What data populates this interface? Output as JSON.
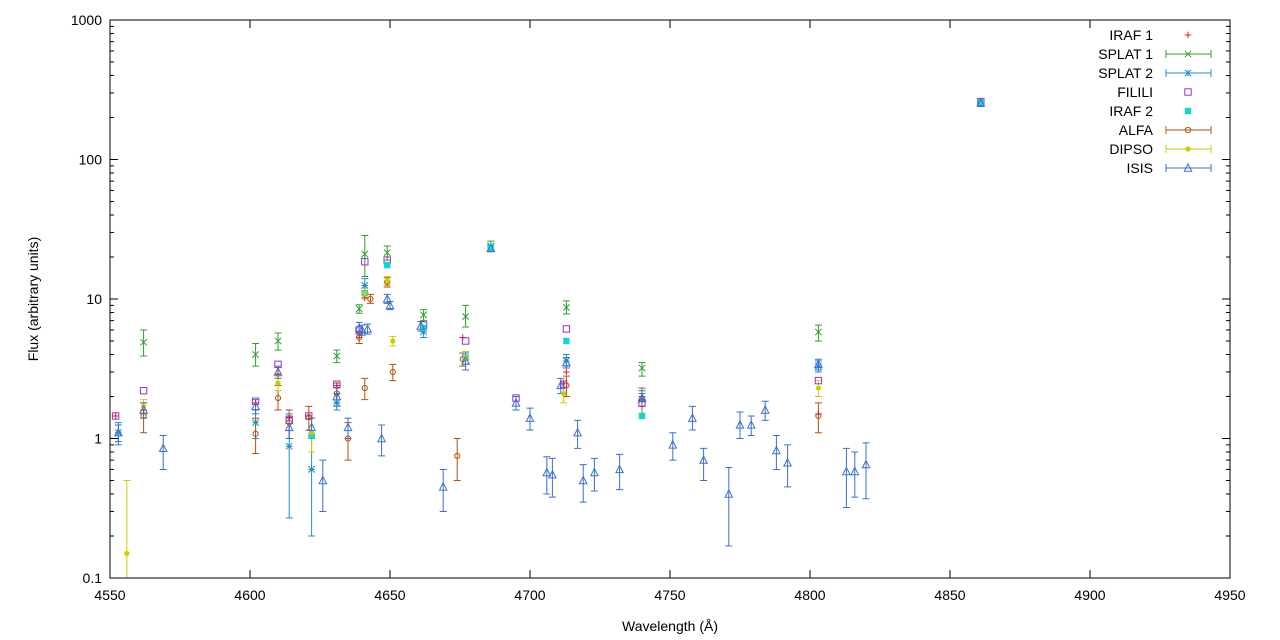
{
  "chart_data": {
    "type": "scatter",
    "xlabel": "Wavelength (Å)",
    "ylabel": "Flux (arbitrary units)",
    "xlim": [
      4550,
      4950
    ],
    "ylim": [
      0.1,
      1000
    ],
    "yscale": "log",
    "xticks": [
      "4550",
      "4600",
      "4650",
      "4700",
      "4750",
      "4800",
      "4850",
      "4900",
      "4950"
    ],
    "yticks": [
      "0.1",
      "1",
      "10",
      "100",
      "1000"
    ],
    "grid": false,
    "legend_position": "top-right",
    "series": [
      {
        "name": "IRAF 1",
        "marker": "plus",
        "color": "#e41a1c",
        "errorbars": false,
        "points": [
          [
            4552,
            1.45
          ],
          [
            4562,
            1.6
          ],
          [
            4602,
            1.8
          ],
          [
            4610,
            2.9
          ],
          [
            4614,
            1.4
          ],
          [
            4621,
            1.45
          ],
          [
            4631,
            2.4
          ],
          [
            4639,
            5.3
          ],
          [
            4641,
            10.2
          ],
          [
            4649,
            13.5
          ],
          [
            4662,
            6.2
          ],
          [
            4676,
            5.3
          ],
          [
            4712,
            2.5
          ],
          [
            4713,
            3.0
          ],
          [
            4740,
            2.0
          ],
          [
            4803,
            1.5
          ],
          [
            4861,
            260
          ]
        ]
      },
      {
        "name": "SPLAT 1",
        "marker": "x",
        "color": "#2ca02c",
        "errorbars": true,
        "points": [
          [
            4562,
            4.9,
            3.9,
            6.0
          ],
          [
            4602,
            4.0,
            3.3,
            4.8
          ],
          [
            4610,
            5.0,
            4.3,
            5.7
          ],
          [
            4631,
            3.9,
            3.5,
            4.3
          ],
          [
            4639,
            8.5,
            7.9,
            9.1
          ],
          [
            4641,
            21.0,
            14.5,
            28.5
          ],
          [
            4649,
            21.5,
            19.0,
            24.0
          ],
          [
            4662,
            7.7,
            7.0,
            8.4
          ],
          [
            4677,
            7.5,
            6.3,
            9.0
          ],
          [
            4686,
            24.0,
            22.0,
            26.0
          ],
          [
            4713,
            8.7,
            7.8,
            9.7
          ],
          [
            4740,
            3.2,
            2.8,
            3.5
          ],
          [
            4803,
            5.8,
            5.0,
            6.5
          ]
        ]
      },
      {
        "name": "SPLAT 2",
        "marker": "asterisk",
        "color": "#1f8fc8",
        "errorbars": true,
        "points": [
          [
            4553,
            1.1,
            0.9,
            1.3
          ],
          [
            4602,
            1.3,
            1.0,
            1.6
          ],
          [
            4614,
            0.88,
            0.27,
            1.5
          ],
          [
            4622,
            0.6,
            0.2,
            1.05
          ],
          [
            4631,
            1.8,
            1.6,
            2.1
          ],
          [
            4641,
            12.5,
            11.0,
            14.0
          ],
          [
            4662,
            5.8,
            5.3,
            6.3
          ],
          [
            4686,
            23.5,
            22.5,
            24.5
          ],
          [
            4713,
            3.6,
            3.3,
            4.0
          ],
          [
            4740,
            1.9,
            1.7,
            2.1
          ],
          [
            4803,
            3.3,
            3.0,
            3.6
          ],
          [
            4861,
            255,
            240,
            270
          ]
        ]
      },
      {
        "name": "FILILI",
        "marker": "open-square",
        "color": "#9933cc",
        "errorbars": false,
        "points": [
          [
            4552,
            1.45
          ],
          [
            4562,
            2.2
          ],
          [
            4602,
            1.85
          ],
          [
            4610,
            3.4
          ],
          [
            4614,
            1.35
          ],
          [
            4621,
            1.45
          ],
          [
            4631,
            2.45
          ],
          [
            4639,
            6.0
          ],
          [
            4641,
            18.5
          ],
          [
            4649,
            19.0
          ],
          [
            4662,
            6.5
          ],
          [
            4677,
            5.0
          ],
          [
            4695,
            1.95
          ],
          [
            4712,
            2.45
          ],
          [
            4713,
            6.1
          ],
          [
            4740,
            1.8
          ],
          [
            4803,
            2.6
          ],
          [
            4861,
            260
          ]
        ]
      },
      {
        "name": "IRAF 2",
        "marker": "filled-square",
        "color": "#17d4d4",
        "errorbars": false,
        "points": [
          [
            4622,
            1.05
          ],
          [
            4641,
            11.0
          ],
          [
            4649,
            17.5
          ],
          [
            4662,
            6.2
          ],
          [
            4677,
            3.8
          ],
          [
            4686,
            23.5
          ],
          [
            4713,
            5.0
          ],
          [
            4740,
            1.45
          ],
          [
            4861,
            258
          ]
        ]
      },
      {
        "name": "ALFA",
        "marker": "open-circle",
        "color": "#b5520c",
        "errorbars": true,
        "points": [
          [
            4562,
            1.45,
            1.1,
            1.8
          ],
          [
            4602,
            1.08,
            0.78,
            1.4
          ],
          [
            4610,
            1.95,
            1.6,
            2.4
          ],
          [
            4614,
            1.3,
            1.0,
            1.6
          ],
          [
            4621,
            1.42,
            1.15,
            1.7
          ],
          [
            4631,
            2.1,
            1.8,
            2.5
          ],
          [
            4635,
            1.0,
            0.7,
            1.3
          ],
          [
            4639,
            5.3,
            4.8,
            5.8
          ],
          [
            4641,
            2.3,
            1.9,
            2.7
          ],
          [
            4643,
            10.0,
            9.3,
            10.8
          ],
          [
            4649,
            13.2,
            12.2,
            14.2
          ],
          [
            4651,
            3.0,
            2.6,
            3.4
          ],
          [
            4674,
            0.75,
            0.5,
            1.0
          ],
          [
            4676,
            3.7,
            3.3,
            4.1
          ],
          [
            4713,
            2.4,
            2.0,
            2.8
          ],
          [
            4740,
            1.9,
            1.5,
            2.3
          ],
          [
            4803,
            1.45,
            1.1,
            1.8
          ]
        ]
      },
      {
        "name": "DIPSO",
        "marker": "filled-circle",
        "color": "#cccc00",
        "errorbars": true,
        "points": [
          [
            4556,
            0.15,
            0.1,
            0.5
          ],
          [
            4562,
            1.7,
            1.5,
            1.9
          ],
          [
            4610,
            2.5,
            2.2,
            2.8
          ],
          [
            4622,
            1.1,
            0.8,
            1.4
          ],
          [
            4641,
            11.0,
            10.0,
            12.0
          ],
          [
            4649,
            13.5,
            12.5,
            14.5
          ],
          [
            4651,
            5.0,
            4.6,
            5.4
          ],
          [
            4677,
            3.8,
            3.4,
            4.2
          ],
          [
            4712,
            2.1,
            1.8,
            2.5
          ],
          [
            4803,
            2.3,
            2.0,
            2.6
          ]
        ]
      },
      {
        "name": "ISIS",
        "marker": "open-triangle",
        "color": "#3b6fcf",
        "errorbars": true,
        "points": [
          [
            4553,
            1.1,
            0.95,
            1.25
          ],
          [
            4562,
            1.6,
            1.4,
            1.8
          ],
          [
            4569,
            0.85,
            0.6,
            1.05
          ],
          [
            4602,
            1.7,
            1.5,
            1.9
          ],
          [
            4610,
            3.0,
            2.7,
            3.3
          ],
          [
            4614,
            1.2,
            1.0,
            1.45
          ],
          [
            4622,
            1.2,
            1.0,
            1.4
          ],
          [
            4626,
            0.5,
            0.3,
            0.7
          ],
          [
            4631,
            2.0,
            1.7,
            2.3
          ],
          [
            4635,
            1.2,
            1.0,
            1.4
          ],
          [
            4639,
            6.2,
            5.6,
            6.8
          ],
          [
            4640,
            6.0,
            5.5,
            6.5
          ],
          [
            4642,
            6.1,
            5.6,
            6.6
          ],
          [
            4647,
            1.0,
            0.75,
            1.25
          ],
          [
            4649,
            10.0,
            9.3,
            10.8
          ],
          [
            4650,
            9.0,
            8.4,
            9.6
          ],
          [
            4661,
            6.4,
            5.9,
            6.9
          ],
          [
            4669,
            0.45,
            0.3,
            0.6
          ],
          [
            4677,
            3.6,
            3.1,
            4.1
          ],
          [
            4686,
            23.0,
            22.0,
            24.0
          ],
          [
            4695,
            1.8,
            1.6,
            2.0
          ],
          [
            4700,
            1.4,
            1.15,
            1.65
          ],
          [
            4706,
            0.57,
            0.4,
            0.74
          ],
          [
            4708,
            0.55,
            0.38,
            0.72
          ],
          [
            4711,
            2.4,
            2.1,
            2.7
          ],
          [
            4713,
            3.5,
            3.2,
            3.8
          ],
          [
            4717,
            1.1,
            0.85,
            1.35
          ],
          [
            4719,
            0.5,
            0.35,
            0.65
          ],
          [
            4723,
            0.57,
            0.42,
            0.72
          ],
          [
            4732,
            0.6,
            0.43,
            0.77
          ],
          [
            4740,
            1.95,
            1.7,
            2.2
          ],
          [
            4751,
            0.9,
            0.7,
            1.1
          ],
          [
            4758,
            1.4,
            1.15,
            1.7
          ],
          [
            4762,
            0.7,
            0.5,
            0.85
          ],
          [
            4771,
            0.4,
            0.17,
            0.62
          ],
          [
            4775,
            1.25,
            1.0,
            1.55
          ],
          [
            4779,
            1.25,
            1.05,
            1.45
          ],
          [
            4784,
            1.6,
            1.35,
            1.85
          ],
          [
            4788,
            0.82,
            0.6,
            1.05
          ],
          [
            4792,
            0.67,
            0.45,
            0.9
          ],
          [
            4803,
            3.4,
            3.1,
            3.7
          ],
          [
            4813,
            0.58,
            0.32,
            0.85
          ],
          [
            4816,
            0.58,
            0.38,
            0.8
          ],
          [
            4820,
            0.65,
            0.37,
            0.93
          ],
          [
            4861,
            255,
            245,
            265
          ]
        ]
      }
    ]
  }
}
